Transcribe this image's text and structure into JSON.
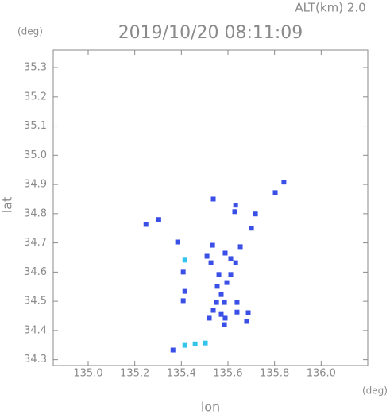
{
  "chart_data": {
    "type": "scatter",
    "title": "2019/10/20 08:11:09",
    "subtitle": "ALT(km) 2.0",
    "x_label": "lon",
    "y_label": "lat",
    "x_unit": "(deg)",
    "y_unit": "(deg)",
    "xlim": [
      134.85,
      136.2
    ],
    "ylim": [
      34.28,
      35.36
    ],
    "xticks": [
      {
        "value": 135,
        "label": "135.0"
      },
      135.2,
      135.4,
      135.6,
      135.8,
      {
        "value": 136,
        "label": "136.0"
      }
    ],
    "yticks": [
      34.3,
      34.4,
      34.5,
      34.6,
      34.7,
      34.8,
      34.9,
      {
        "value": 35,
        "label": "35.0"
      },
      35.1,
      35.2,
      35.3
    ],
    "series": [
      {
        "color": "#3a4fe6",
        "x": [
          135.248,
          135.303,
          135.384,
          135.537,
          135.633,
          135.629,
          135.718,
          135.803,
          135.84,
          135.701,
          135.534,
          135.51,
          135.527,
          135.588,
          135.612,
          135.653,
          135.633,
          135.561,
          135.595,
          135.612,
          135.554,
          135.571,
          135.551,
          135.585,
          135.537,
          135.571,
          135.52,
          135.588,
          135.639,
          135.639,
          135.687,
          135.68,
          135.415,
          135.408,
          135.585,
          135.364,
          135.408
        ],
        "values": [
          34.763,
          34.78,
          34.703,
          34.85,
          34.829,
          34.807,
          34.799,
          34.872,
          34.908,
          34.75,
          34.692,
          34.654,
          34.632,
          34.665,
          34.646,
          34.687,
          34.632,
          34.592,
          34.564,
          34.592,
          34.551,
          34.523,
          34.496,
          34.496,
          34.469,
          34.455,
          34.442,
          34.442,
          34.496,
          34.463,
          34.461,
          34.431,
          34.534,
          34.502,
          34.42,
          34.333,
          34.6
        ]
      },
      {
        "color": "#33c4ee",
        "x": [
          135.415,
          135.415,
          135.459,
          135.503
        ],
        "values": [
          34.641,
          34.349,
          34.354,
          34.357
        ]
      }
    ]
  }
}
